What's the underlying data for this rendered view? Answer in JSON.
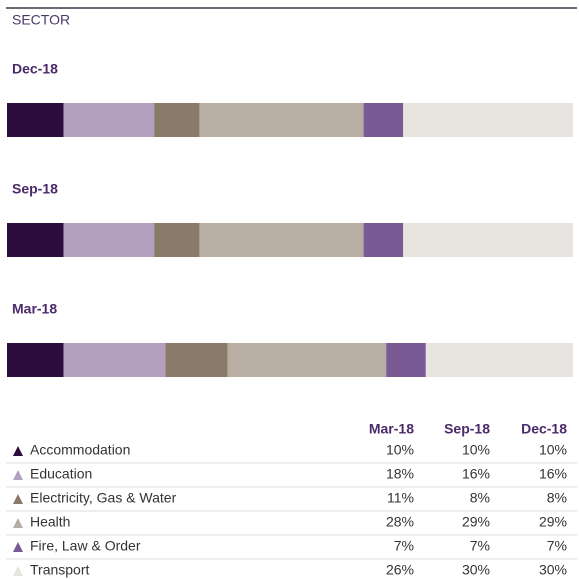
{
  "chart_data": {
    "type": "stacked-bar",
    "title": "SECTOR",
    "categories": [
      "Dec-18",
      "Sep-18",
      "Mar-18"
    ],
    "xlim": [
      0,
      100
    ],
    "series": [
      {
        "name": "Accommodation",
        "color": "#2d0b3e",
        "values": [
          10,
          10,
          10
        ],
        "value_labels": [
          "10%",
          "10%",
          "10%"
        ]
      },
      {
        "name": "Education",
        "color": "#b3a0c0",
        "values": [
          16,
          16,
          18
        ],
        "value_labels": [
          "16%",
          "16%",
          "18%"
        ]
      },
      {
        "name": "Electricity, Gas & Water",
        "color": "#8a7a6a",
        "values": [
          8,
          8,
          11
        ],
        "value_labels": [
          "8%",
          "8%",
          "11%"
        ]
      },
      {
        "name": "Health",
        "color": "#b8aea4",
        "values": [
          29,
          29,
          28
        ],
        "value_labels": [
          "29%",
          "29%",
          "28%"
        ]
      },
      {
        "name": "Fire, Law & Order",
        "color": "#7a5a94",
        "values": [
          7,
          7,
          7
        ],
        "value_labels": [
          "7%",
          "7%",
          "7%"
        ]
      },
      {
        "name": "Transport",
        "color": "#e8e4e0",
        "values": [
          30,
          30,
          26
        ],
        "value_labels": [
          "30%",
          "30%",
          "26%"
        ]
      }
    ]
  }
}
